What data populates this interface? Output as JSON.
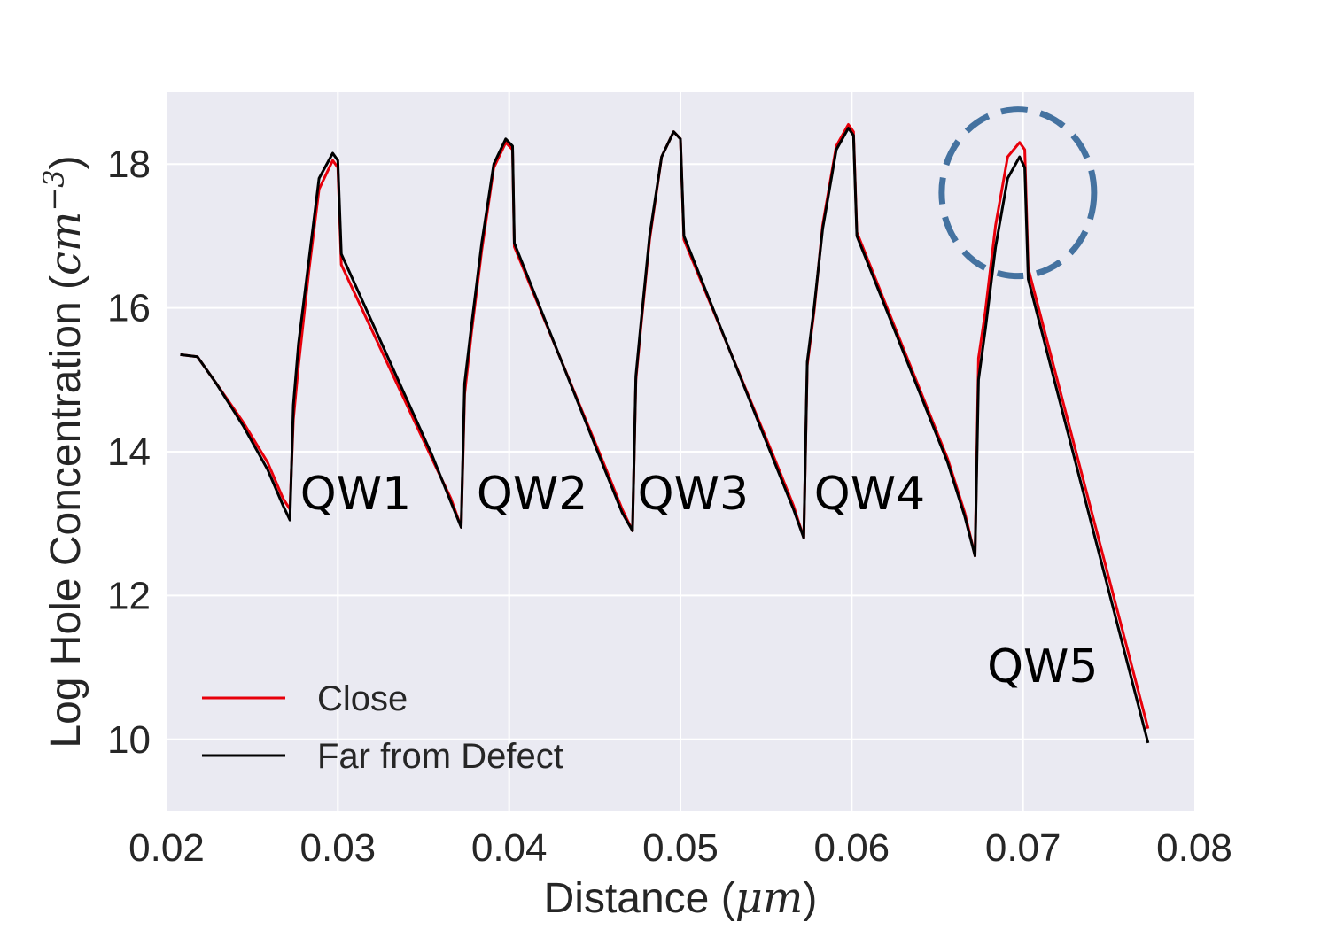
{
  "chart_data": {
    "type": "line",
    "xlabel": "Distance",
    "xlabel_unit": "μm",
    "ylabel": "Log Hole Concentration",
    "ylabel_unit": "cm",
    "ylabel_unit_exp": "−3",
    "xlim": [
      0.02,
      0.08
    ],
    "ylim": [
      9.0,
      19.0
    ],
    "xticks": [
      0.02,
      0.03,
      0.04,
      0.05,
      0.06,
      0.07,
      0.08
    ],
    "xtick_labels": [
      "0.02",
      "0.03",
      "0.04",
      "0.05",
      "0.06",
      "0.07",
      "0.08"
    ],
    "yticks": [
      10,
      12,
      14,
      16,
      18
    ],
    "ytick_labels": [
      "10",
      "12",
      "14",
      "16",
      "18"
    ],
    "grid": true,
    "legend_position": "lower-left",
    "series": [
      {
        "name": "Close",
        "color": "#e8000b",
        "points": [
          [
            0.0208,
            15.35
          ],
          [
            0.0218,
            15.32
          ],
          [
            0.0229,
            14.95
          ],
          [
            0.0245,
            14.4
          ],
          [
            0.0259,
            13.85
          ],
          [
            0.0268,
            13.35
          ],
          [
            0.0272,
            13.2
          ],
          [
            0.0274,
            14.45
          ],
          [
            0.0277,
            15.2
          ],
          [
            0.0283,
            16.5
          ],
          [
            0.0289,
            17.65
          ],
          [
            0.0297,
            18.05
          ],
          [
            0.03,
            17.95
          ],
          [
            0.0302,
            16.6
          ],
          [
            0.0355,
            13.9
          ],
          [
            0.0366,
            13.35
          ],
          [
            0.0372,
            12.95
          ],
          [
            0.0374,
            14.8
          ],
          [
            0.0378,
            15.65
          ],
          [
            0.0384,
            16.8
          ],
          [
            0.0391,
            17.95
          ],
          [
            0.0398,
            18.3
          ],
          [
            0.0402,
            18.2
          ],
          [
            0.0403,
            16.85
          ],
          [
            0.0455,
            13.85
          ],
          [
            0.0466,
            13.2
          ],
          [
            0.0472,
            12.9
          ],
          [
            0.0474,
            15.0
          ],
          [
            0.0477,
            15.75
          ],
          [
            0.0482,
            16.95
          ],
          [
            0.0489,
            18.1
          ],
          [
            0.0496,
            18.45
          ],
          [
            0.05,
            18.35
          ],
          [
            0.0502,
            16.95
          ],
          [
            0.0555,
            13.9
          ],
          [
            0.0566,
            13.25
          ],
          [
            0.0572,
            12.8
          ],
          [
            0.0574,
            15.2
          ],
          [
            0.0578,
            15.95
          ],
          [
            0.0583,
            17.15
          ],
          [
            0.0591,
            18.25
          ],
          [
            0.0598,
            18.55
          ],
          [
            0.0601,
            18.45
          ],
          [
            0.0603,
            17.05
          ],
          [
            0.0656,
            13.9
          ],
          [
            0.0666,
            13.15
          ],
          [
            0.0672,
            12.55
          ],
          [
            0.0674,
            15.3
          ],
          [
            0.0678,
            15.95
          ],
          [
            0.0684,
            17.15
          ],
          [
            0.0691,
            18.1
          ],
          [
            0.0698,
            18.3
          ],
          [
            0.0701,
            18.2
          ],
          [
            0.0703,
            16.55
          ],
          [
            0.0773,
            10.15
          ]
        ]
      },
      {
        "name": "Far from Defect",
        "color": "#000000",
        "points": [
          [
            0.0208,
            15.35
          ],
          [
            0.0218,
            15.32
          ],
          [
            0.0229,
            14.95
          ],
          [
            0.0245,
            14.35
          ],
          [
            0.0259,
            13.75
          ],
          [
            0.0268,
            13.25
          ],
          [
            0.0272,
            13.05
          ],
          [
            0.0274,
            14.65
          ],
          [
            0.0277,
            15.5
          ],
          [
            0.0283,
            16.65
          ],
          [
            0.0289,
            17.8
          ],
          [
            0.0297,
            18.15
          ],
          [
            0.03,
            18.05
          ],
          [
            0.0302,
            16.75
          ],
          [
            0.0355,
            13.95
          ],
          [
            0.0366,
            13.3
          ],
          [
            0.0372,
            12.95
          ],
          [
            0.0374,
            14.95
          ],
          [
            0.0378,
            15.75
          ],
          [
            0.0384,
            16.9
          ],
          [
            0.0391,
            18.0
          ],
          [
            0.0398,
            18.35
          ],
          [
            0.0402,
            18.25
          ],
          [
            0.0403,
            16.9
          ],
          [
            0.0455,
            13.8
          ],
          [
            0.0466,
            13.15
          ],
          [
            0.0472,
            12.9
          ],
          [
            0.0474,
            15.05
          ],
          [
            0.0477,
            15.8
          ],
          [
            0.0482,
            17.0
          ],
          [
            0.0489,
            18.1
          ],
          [
            0.0496,
            18.45
          ],
          [
            0.05,
            18.35
          ],
          [
            0.0502,
            17.0
          ],
          [
            0.0555,
            13.85
          ],
          [
            0.0566,
            13.2
          ],
          [
            0.0572,
            12.8
          ],
          [
            0.0574,
            15.25
          ],
          [
            0.0578,
            16.0
          ],
          [
            0.0583,
            17.1
          ],
          [
            0.0591,
            18.2
          ],
          [
            0.0598,
            18.5
          ],
          [
            0.0601,
            18.4
          ],
          [
            0.0603,
            17.0
          ],
          [
            0.0656,
            13.85
          ],
          [
            0.0666,
            13.1
          ],
          [
            0.0672,
            12.55
          ],
          [
            0.0674,
            15.0
          ],
          [
            0.0678,
            15.7
          ],
          [
            0.0684,
            16.85
          ],
          [
            0.0691,
            17.8
          ],
          [
            0.0698,
            18.1
          ],
          [
            0.0701,
            17.95
          ],
          [
            0.0703,
            16.4
          ],
          [
            0.0773,
            9.95
          ]
        ]
      }
    ],
    "annotations": [
      {
        "text": "QW1",
        "x": 0.0278,
        "y": 13.2
      },
      {
        "text": "QW2",
        "x": 0.0381,
        "y": 13.2
      },
      {
        "text": "QW3",
        "x": 0.0475,
        "y": 13.2
      },
      {
        "text": "QW4",
        "x": 0.0578,
        "y": 13.2
      },
      {
        "text": "QW5",
        "x": 0.0679,
        "y": 10.8
      }
    ],
    "highlight_circle": {
      "x": 0.0697,
      "y": 17.6,
      "color": "#4472a0",
      "style": "dashed"
    }
  }
}
